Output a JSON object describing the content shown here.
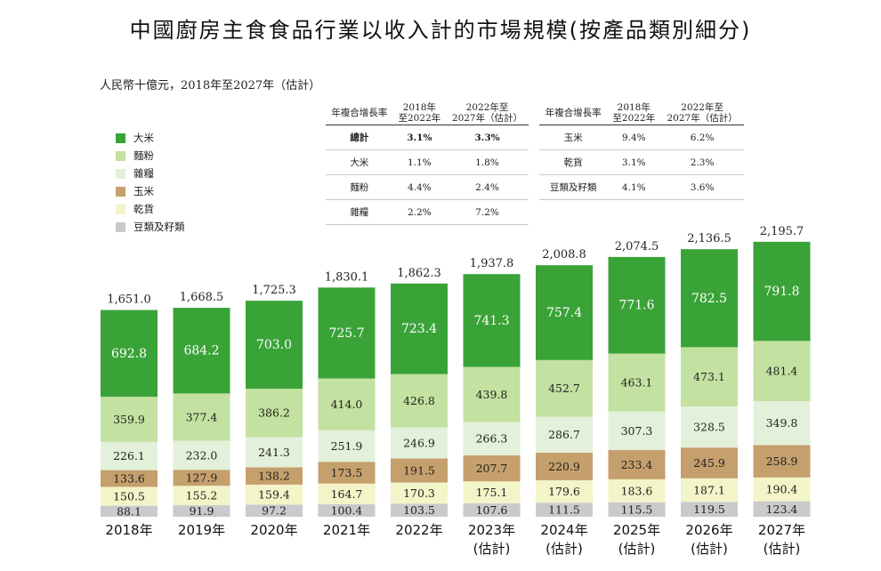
{
  "title": "中國廚房主食食品行業以收入計的市場規模(按產品類別細分)",
  "subtitle": "人民幣十億元，2018年至2027年（估計）",
  "colors": {
    "大米": "#3aa338",
    "麵粉": "#c3e1a0",
    "雜糧": "#e3f1db",
    "玉米": "#c59f6c",
    "乾貨": "#f3f4c8",
    "豆類及籽類": "#c9cacc"
  },
  "cagr_table_1": {
    "header": [
      "年複合增長率",
      "2018年\n至2022年",
      "2022年至\n2027年（估計）"
    ],
    "rows": [
      [
        "總計",
        "3.1%",
        "3.3%"
      ],
      [
        "大米",
        "1.1%",
        "1.8%"
      ],
      [
        "麵粉",
        "4.4%",
        "2.4%"
      ],
      [
        "雜糧",
        "2.2%",
        "7.2%"
      ]
    ]
  },
  "cagr_table_2": {
    "header": [
      "年複合增長率",
      "2018年\n至2022年",
      "2022年至\n2027年（估計）"
    ],
    "rows": [
      [
        "玉米",
        "9.4%",
        "6.2%"
      ],
      [
        "乾貨",
        "3.1%",
        "2.3%"
      ],
      [
        "豆類及籽類",
        "4.1%",
        "3.6%"
      ]
    ]
  },
  "chart_data": {
    "type": "bar",
    "stacked": true,
    "categories": [
      "2018年",
      "2019年",
      "2020年",
      "2021年",
      "2022年",
      "2023年\n(估計)",
      "2024年\n(估計)",
      "2025年\n(估計)",
      "2026年\n(估計)",
      "2027年\n(估計)"
    ],
    "legend_order": [
      "大米",
      "麵粉",
      "雜糧",
      "玉米",
      "乾貨",
      "豆類及籽類"
    ],
    "series": [
      {
        "name": "豆類及籽類",
        "values": [
          88.1,
          91.9,
          97.2,
          100.4,
          103.5,
          107.6,
          111.5,
          115.5,
          119.5,
          123.4
        ]
      },
      {
        "name": "乾貨",
        "values": [
          150.5,
          155.2,
          159.4,
          164.7,
          170.3,
          175.1,
          179.6,
          183.6,
          187.1,
          190.4
        ]
      },
      {
        "name": "玉米",
        "values": [
          133.6,
          127.9,
          138.2,
          173.5,
          191.5,
          207.7,
          220.9,
          233.4,
          245.9,
          258.9
        ]
      },
      {
        "name": "雜糧",
        "values": [
          226.1,
          232.0,
          241.3,
          251.9,
          246.9,
          266.3,
          286.7,
          307.3,
          328.5,
          349.8
        ]
      },
      {
        "name": "麵粉",
        "values": [
          359.9,
          377.4,
          386.2,
          414.0,
          426.8,
          439.8,
          452.7,
          463.1,
          473.1,
          481.4
        ]
      },
      {
        "name": "大米",
        "values": [
          692.8,
          684.2,
          703.0,
          725.7,
          723.4,
          741.3,
          757.4,
          771.6,
          782.5,
          791.8
        ]
      }
    ],
    "totals": [
      "1,651.0",
      "1,668.5",
      "1,725.3",
      "1,830.1",
      "1,862.3",
      "1,937.8",
      "2,008.8",
      "2,074.5",
      "2,136.5",
      "2,195.7"
    ],
    "legend": "left"
  }
}
